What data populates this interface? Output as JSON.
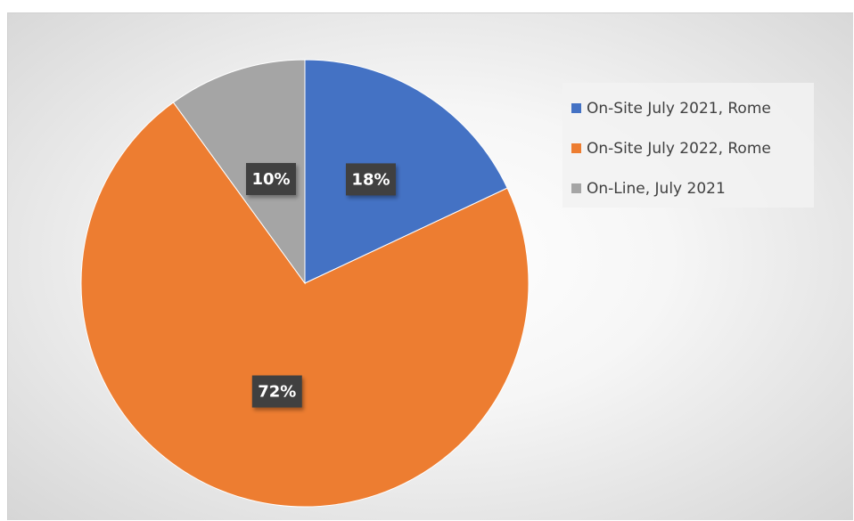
{
  "chart_data": {
    "type": "pie",
    "categories": [
      "On-Site July 2021, Rome",
      "On-Site July 2022, Rome",
      "On-Line, July 2021"
    ],
    "values": [
      18,
      72,
      10
    ],
    "labels": [
      "18%",
      "72%",
      "10%"
    ],
    "colors": [
      "#4472C4",
      "#ED7D31",
      "#A5A5A5"
    ],
    "legend_position": "right"
  }
}
